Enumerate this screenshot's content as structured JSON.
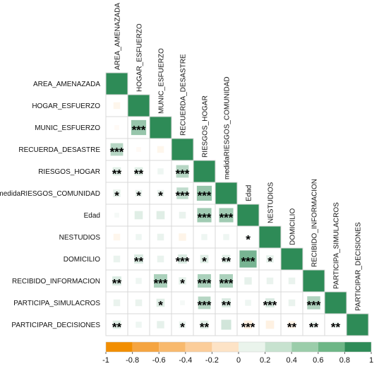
{
  "chart_data": {
    "type": "heatmap",
    "variables": [
      "AREA_AMENAZADA",
      "HOGAR_ESFUERZO",
      "MUNIC_ESFUERZO",
      "RECUERDA_DESASTRE",
      "RIESGOS_HOGAR",
      "medidaRIESGOS_COMUNIDAD",
      "Edad",
      "NESTUDIOS",
      "DOMICILIO",
      "RECIBIDO_INFORMACION",
      "PARTICIPA_SIMULACROS",
      "PARTICIPAR_DECISIONES"
    ],
    "diagonal_value": 1,
    "matrix_lower": [
      [],
      [
        -0.1
      ],
      [
        -0.05,
        0.5
      ],
      [
        0.35,
        -0.05,
        -0.1
      ],
      [
        0.15,
        0.15,
        0.08,
        0.35
      ],
      [
        0.12,
        0.1,
        0.1,
        0.3,
        0.5
      ],
      [
        0.05,
        0.15,
        0.15,
        0.1,
        0.45,
        0.45
      ],
      [
        -0.1,
        0.08,
        0.1,
        -0.12,
        0.08,
        0.08,
        0.05
      ],
      [
        0.1,
        0.18,
        0.1,
        0.18,
        0.15,
        0.15,
        0.65,
        0.12
      ],
      [
        0.18,
        0.08,
        0.4,
        0.12,
        0.4,
        0.4,
        0.12,
        0.1,
        0.1
      ],
      [
        0.1,
        0.1,
        0.15,
        0.05,
        0.35,
        0.18,
        0.08,
        0.18,
        0.1,
        0.38
      ],
      [
        0.15,
        0.08,
        0.12,
        0.1,
        0.15,
        0.22,
        -0.15,
        -0.15,
        -0.12,
        0.1,
        0.08
      ]
    ],
    "stars_lower": [
      [],
      [
        ""
      ],
      [
        "",
        "***"
      ],
      [
        "***",
        "",
        ""
      ],
      [
        "**",
        "**",
        "",
        "***"
      ],
      [
        "*",
        "*",
        "*",
        "***",
        "***"
      ],
      [
        "",
        "",
        "",
        "",
        "***",
        "***"
      ],
      [
        "",
        "",
        "",
        "",
        "",
        "",
        "*"
      ],
      [
        "",
        "**",
        "",
        "***",
        "*",
        "**",
        "***",
        "*"
      ],
      [
        "**",
        "",
        "***",
        "*",
        "***",
        "***",
        "",
        "",
        ""
      ],
      [
        "",
        "",
        "*",
        "",
        "***",
        "**",
        "",
        "***",
        "",
        "***"
      ],
      [
        "**",
        "",
        "",
        "*",
        "**",
        "",
        "***",
        "",
        "**",
        "**",
        "**"
      ]
    ],
    "color_scale": {
      "range": [
        -1,
        1
      ],
      "ticks": [
        "-1",
        "-0.8",
        "-0.6",
        "-0.4",
        "-0.2",
        "0",
        "0.2",
        "0.4",
        "0.6",
        "0.8",
        "1"
      ],
      "bins": [
        "#f28e00",
        "#f5a440",
        "#f8b96d",
        "#fbcd9a",
        "#fde3c6",
        "#eaf4ec",
        "#c7e2cf",
        "#9bcdaa",
        "#6db686",
        "#2e8b57"
      ],
      "negative_color": "#f5a040",
      "positive_color": "#2e8b57"
    }
  }
}
